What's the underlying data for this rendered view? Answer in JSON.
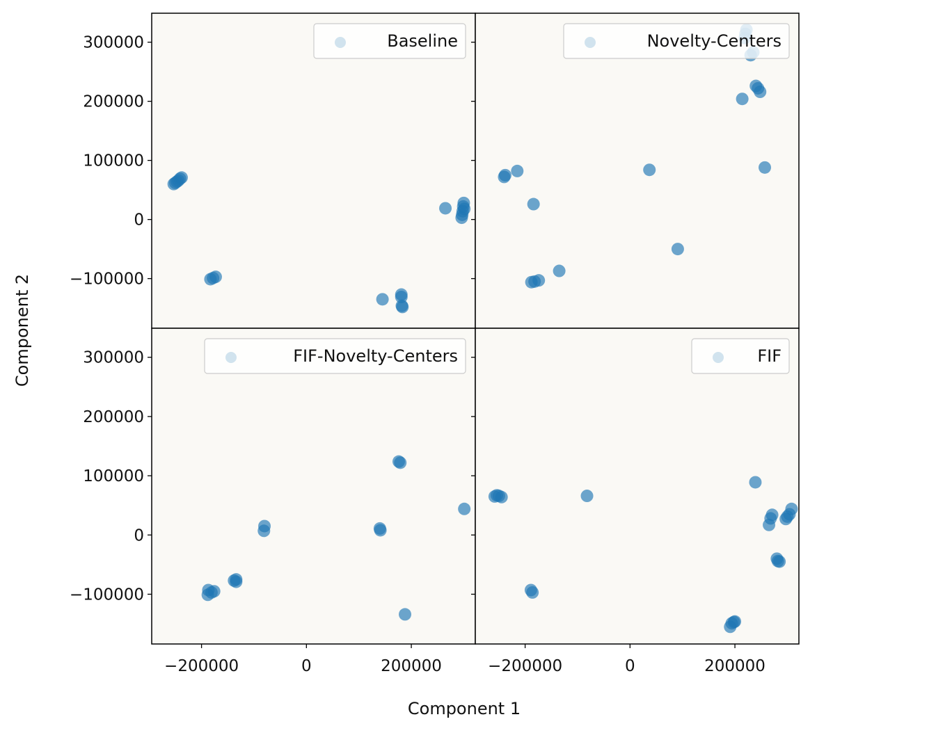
{
  "figure": {
    "xlabel": "Component 1",
    "ylabel": "Component 2",
    "xlim": [
      -295000,
      322000
    ],
    "ylim": [
      -184000,
      349000
    ],
    "x_ticks": [
      -200000,
      0,
      200000
    ],
    "x_tick_labels": [
      "−200000",
      "0",
      "200000"
    ],
    "y_ticks": [
      300000,
      200000,
      100000,
      0,
      -100000
    ],
    "y_tick_labels": [
      "300000",
      "200000",
      "100000",
      "0",
      "−100000"
    ],
    "panel_background": "#faf9f5",
    "point_color": "#1f77b4"
  },
  "chart_data": [
    {
      "type": "scatter",
      "legend": "Baseline",
      "legend_location": "upper right",
      "grid": false,
      "points": [
        [
          -253000,
          60000
        ],
        [
          -250000,
          62000
        ],
        [
          -247000,
          64000
        ],
        [
          -244000,
          66000
        ],
        [
          -241000,
          69000
        ],
        [
          -238000,
          71000
        ],
        [
          -183000,
          -101000
        ],
        [
          -178000,
          -99000
        ],
        [
          -173000,
          -97000
        ],
        [
          145000,
          -135000
        ],
        [
          181000,
          -127000
        ],
        [
          181000,
          -131000
        ],
        [
          182000,
          -146000
        ],
        [
          183000,
          -148000
        ],
        [
          265000,
          19000
        ],
        [
          300000,
          28000
        ],
        [
          299000,
          22000
        ],
        [
          298000,
          14000
        ],
        [
          297000,
          8000
        ],
        [
          296000,
          3000
        ],
        [
          301000,
          18000
        ]
      ]
    },
    {
      "type": "scatter",
      "legend": "Novelty-Centers",
      "legend_location": "upper right",
      "grid": false,
      "points": [
        [
          -240000,
          72000
        ],
        [
          -238000,
          75000
        ],
        [
          -215000,
          82000
        ],
        [
          -184000,
          26000
        ],
        [
          -188000,
          -106000
        ],
        [
          -182000,
          -105000
        ],
        [
          -174000,
          -103000
        ],
        [
          -135000,
          -87000
        ],
        [
          37000,
          84000
        ],
        [
          91000,
          -50000
        ],
        [
          214000,
          204000
        ],
        [
          219000,
          307000
        ],
        [
          220000,
          314000
        ],
        [
          222000,
          321000
        ],
        [
          230000,
          278000
        ],
        [
          235000,
          283000
        ],
        [
          240000,
          226000
        ],
        [
          244000,
          222000
        ],
        [
          248000,
          216000
        ],
        [
          257000,
          88000
        ]
      ]
    },
    {
      "type": "scatter",
      "legend": "FIF-Novelty-Centers",
      "legend_location": "upper right",
      "grid": false,
      "points": [
        [
          -188000,
          -101000
        ],
        [
          -187000,
          -93000
        ],
        [
          -181000,
          -97000
        ],
        [
          -176000,
          -95000
        ],
        [
          -138000,
          -77000
        ],
        [
          -134000,
          -75000
        ],
        [
          -134000,
          -79000
        ],
        [
          -80000,
          15000
        ],
        [
          -81000,
          7000
        ],
        [
          140000,
          11000
        ],
        [
          141000,
          8000
        ],
        [
          176000,
          124000
        ],
        [
          179000,
          122000
        ],
        [
          188000,
          -134000
        ],
        [
          301000,
          44000
        ]
      ]
    },
    {
      "type": "scatter",
      "legend": "FIF",
      "legend_location": "upper right",
      "grid": false,
      "points": [
        [
          -258000,
          65000
        ],
        [
          -254000,
          67000
        ],
        [
          -250000,
          66000
        ],
        [
          -245000,
          64000
        ],
        [
          -82000,
          66000
        ],
        [
          -189000,
          -93000
        ],
        [
          -186000,
          -97000
        ],
        [
          191000,
          -155000
        ],
        [
          194000,
          -149000
        ],
        [
          198000,
          -147000
        ],
        [
          200000,
          -146000
        ],
        [
          239000,
          89000
        ],
        [
          265000,
          17000
        ],
        [
          268000,
          28000
        ],
        [
          271000,
          34000
        ],
        [
          280000,
          -40000
        ],
        [
          282000,
          -44000
        ],
        [
          285000,
          -45000
        ],
        [
          297000,
          27000
        ],
        [
          300000,
          31000
        ],
        [
          304000,
          35000
        ],
        [
          308000,
          44000
        ]
      ]
    }
  ]
}
